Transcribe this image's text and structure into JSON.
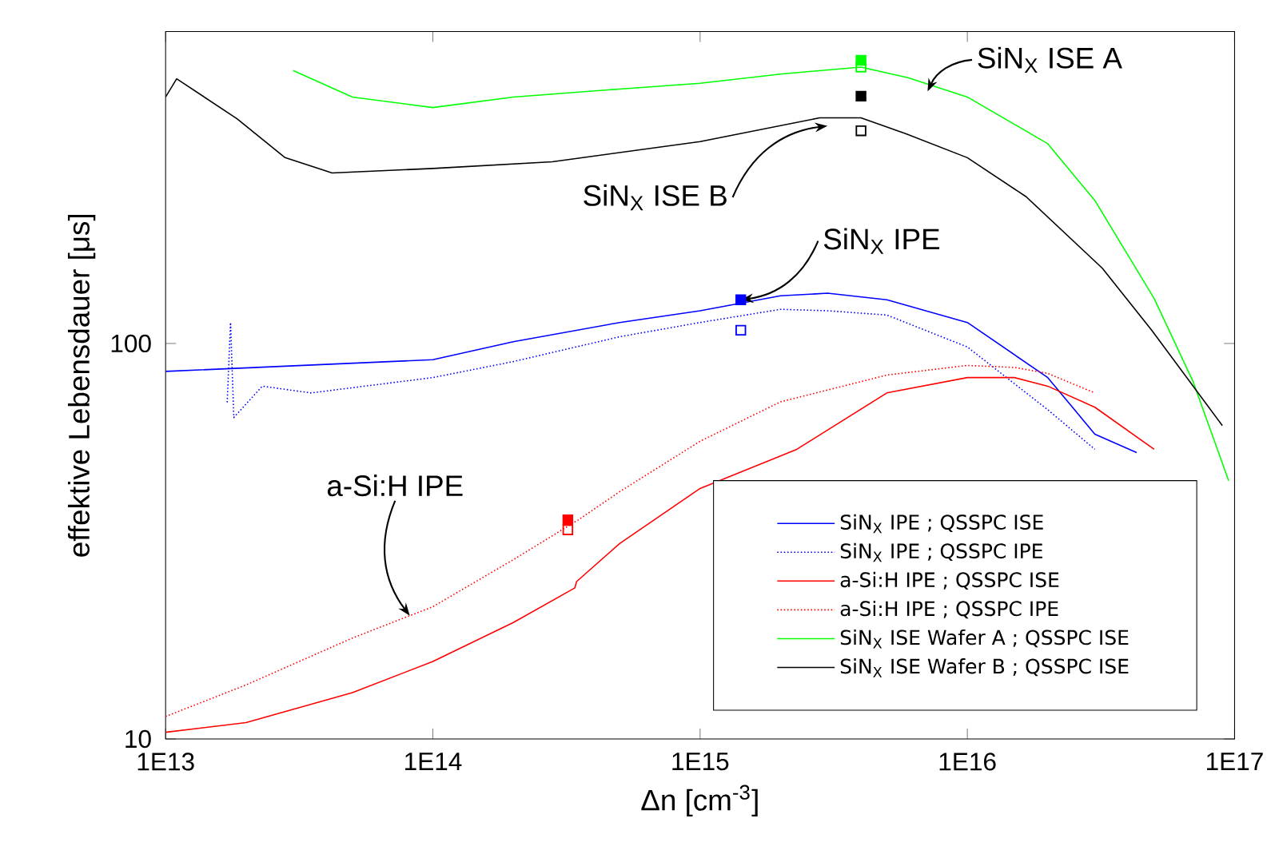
{
  "chart_data": {
    "type": "line",
    "xlabel": "Δn [cm$^{-3}$]",
    "ylabel": "effektive Lebensdauer [μs]",
    "log": "xy",
    "legend": "bottom right",
    "xlim": [
      10000000000000.0,
      1e+17
    ],
    "ylim": [
      10,
      615
    ],
    "xticks": [
      {
        "value": 10000000000000.0,
        "label": "1E13"
      },
      {
        "value": 100000000000000.0,
        "label": "1E14"
      },
      {
        "value": 1000000000000000.0,
        "label": "1E15"
      },
      {
        "value": 1e+16,
        "label": "1E16"
      },
      {
        "value": 1e+17,
        "label": "1E17"
      }
    ],
    "yticks": [
      10,
      100
    ],
    "series": [
      {
        "name": "SiN$_{X}$ IPE ; QSSPC ISE",
        "color": "#0000ff",
        "line_style": "solid",
        "x": [
          10000000000000.0,
          100000000000000.0,
          200000000000000.0,
          500000000000000.0,
          1000000000000000.0,
          2000000000000000.0,
          3000000000000000.0,
          5000000000000000.0,
          1e+16,
          2e+16,
          3e+16,
          4.3e+16
        ],
        "values": [
          85,
          91,
          101,
          113,
          121,
          132,
          134,
          129,
          113,
          82,
          59,
          53
        ]
      },
      {
        "name": "SiN$_{X}$ IPE ; QSSPC IPE",
        "color": "#0000ff",
        "line_style": "dotted",
        "x": [
          17000000000000.0,
          17500000000000.0,
          18000000000000.0,
          23000000000000.0,
          35000000000000.0,
          100000000000000.0,
          200000000000000.0,
          500000000000000.0,
          1000000000000000.0,
          2000000000000000.0,
          3000000000000000.0,
          5000000000000000.0,
          1e+16,
          2e+16,
          3e+16
        ],
        "values": [
          71,
          113,
          65,
          78,
          75,
          82,
          90,
          104,
          113,
          122,
          121,
          118,
          98,
          68,
          54
        ]
      },
      {
        "name": "a-Si:H IPE ; QSSPC ISE",
        "color": "#ff0000",
        "line_style": "solid",
        "x": [
          10000000000000.0,
          20000000000000.0,
          50000000000000.0,
          100000000000000.0,
          200000000000000.0,
          340000000000000.0,
          345000000000000.0,
          500000000000000.0,
          1000000000000000.0,
          2300000000000000.0,
          5000000000000000.0,
          1e+16,
          1.5e+16,
          2e+16,
          3e+16,
          5e+16
        ],
        "values": [
          10.4,
          11.0,
          13.1,
          15.7,
          19.7,
          24.1,
          25.0,
          31.2,
          43,
          54,
          75,
          82,
          82,
          78,
          69,
          54
        ]
      },
      {
        "name": "a-Si:H IPE ; QSSPC IPE",
        "color": "#ff0000",
        "line_style": "dotted",
        "x": [
          10000000000000.0,
          20000000000000.0,
          50000000000000.0,
          100000000000000.0,
          200000000000000.0,
          350000000000000.0,
          500000000000000.0,
          1000000000000000.0,
          2000000000000000.0,
          5000000000000000.0,
          1e+16,
          1.5e+16,
          2e+16,
          3e+16
        ],
        "values": [
          11.4,
          13.7,
          18.0,
          21.6,
          28.4,
          35.8,
          42.2,
          56.6,
          71.2,
          83.2,
          88,
          87,
          84,
          75
        ]
      },
      {
        "name": "SiN$_{X}$ ISE Wafer A ; QSSPC ISE",
        "color": "#00ff00",
        "line_style": "solid",
        "x": [
          30000000000000.0,
          50000000000000.0,
          100000000000000.0,
          200000000000000.0,
          500000000000000.0,
          1000000000000000.0,
          2000000000000000.0,
          4000000000000000.0,
          6000000000000000.0,
          1e+16,
          2e+16,
          3e+16,
          5e+16,
          7e+16,
          9.5e+16
        ],
        "values": [
          490,
          420,
          395,
          420,
          440,
          455,
          480,
          500,
          470,
          420,
          320,
          230,
          130,
          80,
          45
        ]
      },
      {
        "name": "SiN$_{X}$ ISE Wafer B ; QSSPC ISE",
        "color": "#000000",
        "line_style": "solid",
        "x": [
          10000000000000.0,
          11000000000000.0,
          18500000000000.0,
          28000000000000.0,
          42000000000000.0,
          100000000000000.0,
          280000000000000.0,
          1000000000000000.0,
          2800000000000000.0,
          4000000000000000.0,
          5900000000000000.0,
          1e+16,
          1.66e+16,
          3.2e+16,
          4.9e+16,
          9e+16
        ],
        "values": [
          420,
          467,
          370,
          295,
          270,
          277,
          288,
          324,
          372,
          372,
          339,
          295,
          235,
          155,
          108,
          62
        ]
      },
      {
        "type": "scatter",
        "marker": "square",
        "color": "#00ff00",
        "x": [
          4000000000000000.0
        ],
        "values": [
          520
        ]
      },
      {
        "type": "scatter",
        "marker": "square",
        "color": "#00ff00",
        "x": [
          4000000000000000.0
        ],
        "values": [
          500
        ]
      },
      {
        "type": "scatter",
        "marker": "square",
        "color": "#000000",
        "x": [
          4000000000000000.0
        ],
        "values": [
          422
        ]
      },
      {
        "type": "scatter",
        "marker": "square",
        "color": "#000000",
        "x": [
          4000000000000000.0
        ],
        "values": [
          345
        ]
      },
      {
        "type": "scatter",
        "marker": "square",
        "color": "#0000ff",
        "x": [
          1420000000000000.0
        ],
        "values": [
          129
        ]
      },
      {
        "type": "scatter",
        "marker": "square",
        "color": "#0000ff",
        "x": [
          1420000000000000.0
        ],
        "values": [
          108
        ]
      },
      {
        "type": "scatter",
        "marker": "square",
        "color": "#ff0000",
        "x": [
          320000000000000.0
        ],
        "values": [
          35.8
        ]
      },
      {
        "type": "scatter",
        "marker": "square",
        "color": "#ff0000",
        "x": [
          320000000000000.0
        ],
        "values": [
          33.8
        ]
      }
    ],
    "annotations": [
      {
        "text": "SiN$_{X}$ ISE A",
        "x": 7100000000000000.0,
        "y": 434
      },
      {
        "text": "SiN$_{X}$ ISE B",
        "x": 3000000000000000.0,
        "y": 355
      },
      {
        "text": "SiN$_{X}$ IPE",
        "x": 1420000000000000.0,
        "y": 129
      },
      {
        "text": "a-Si:H IPE",
        "x": 82000000000000.0,
        "y": 20.5
      }
    ]
  }
}
